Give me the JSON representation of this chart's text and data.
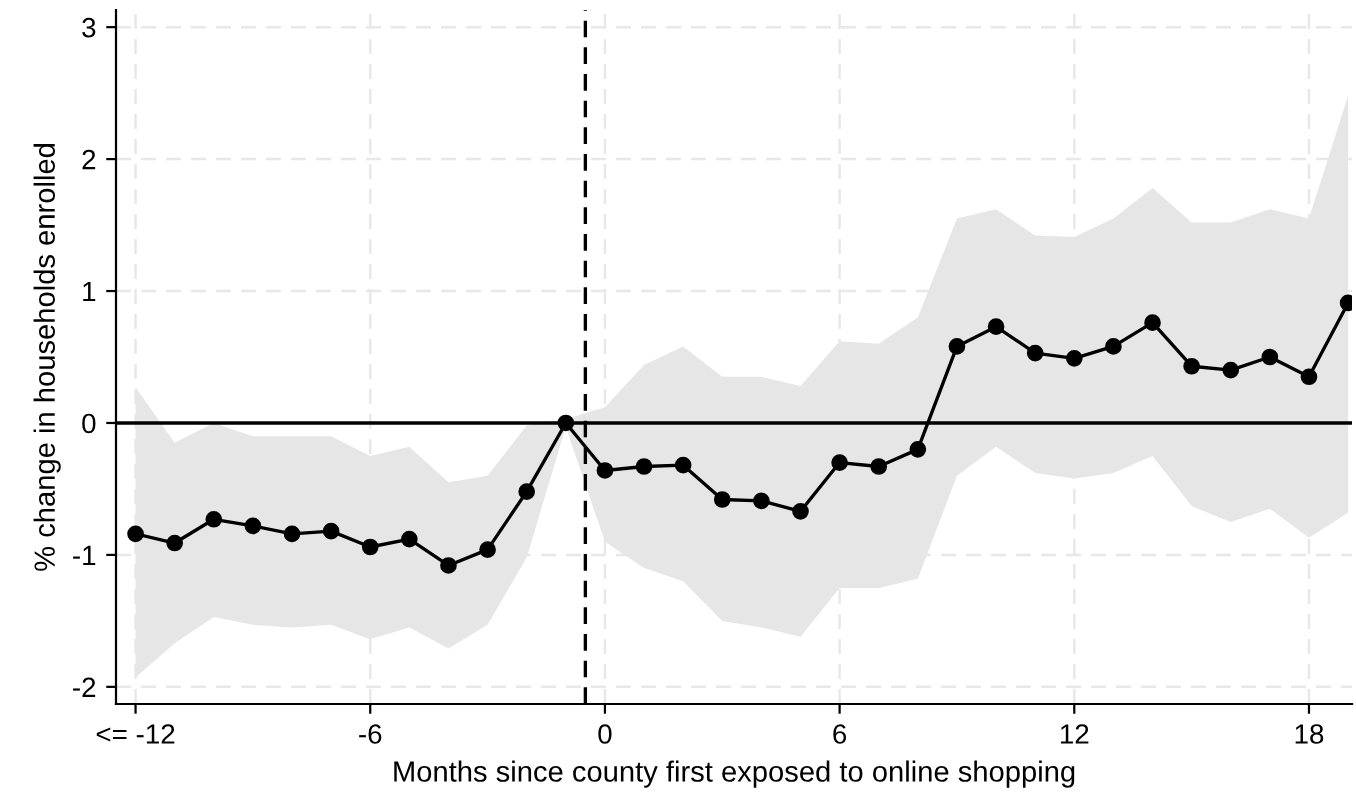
{
  "chart_data": {
    "type": "line",
    "xlabel": "Months since county first exposed to online shopping",
    "ylabel": "% change in households enrolled",
    "x": [
      -12,
      -11,
      -10,
      -9,
      -8,
      -7,
      -6,
      -5,
      -4,
      -3,
      -2,
      -1,
      0,
      1,
      2,
      3,
      4,
      5,
      6,
      7,
      8,
      9,
      10,
      11,
      12,
      13,
      14,
      15,
      16,
      17,
      18,
      19
    ],
    "series": [
      {
        "color": "#000000",
        "values": [
          -0.84,
          -0.91,
          -0.73,
          -0.78,
          -0.84,
          -0.82,
          -0.94,
          -0.88,
          -1.08,
          -0.96,
          -0.52,
          0.0,
          -0.36,
          -0.33,
          -0.32,
          -0.58,
          -0.59,
          -0.67,
          -0.3,
          -0.33,
          -0.2,
          0.58,
          0.73,
          0.53,
          0.49,
          0.58,
          0.76,
          0.43,
          0.4,
          0.5,
          0.35,
          0.91
        ],
        "upper": [
          0.27,
          -0.15,
          0.0,
          -0.1,
          -0.1,
          -0.1,
          -0.25,
          -0.18,
          -0.45,
          -0.4,
          -0.02,
          0.03,
          0.12,
          0.44,
          0.58,
          0.35,
          0.35,
          0.28,
          0.62,
          0.6,
          0.8,
          1.55,
          1.62,
          1.42,
          1.41,
          1.55,
          1.78,
          1.52,
          1.52,
          1.62,
          1.55,
          2.48
        ],
        "lower": [
          -1.93,
          -1.67,
          -1.47,
          -1.53,
          -1.55,
          -1.53,
          -1.64,
          -1.55,
          -1.71,
          -1.53,
          -1.02,
          -0.03,
          -0.9,
          -1.1,
          -1.2,
          -1.5,
          -1.55,
          -1.62,
          -1.25,
          -1.25,
          -1.18,
          -0.4,
          -0.18,
          -0.38,
          -0.42,
          -0.38,
          -0.25,
          -0.63,
          -0.75,
          -0.65,
          -0.87,
          -0.68
        ]
      }
    ],
    "xlim": [
      -12.5,
      19.1
    ],
    "ylim": [
      -2.13,
      3.13
    ],
    "xticks": [
      {
        "value": -12,
        "label": "<= -12"
      },
      -6,
      0,
      6,
      12,
      18
    ],
    "yticks": [
      -2,
      -1,
      0,
      1,
      2,
      3
    ],
    "ref_lines": [
      {
        "axis": "x",
        "value": -0.5,
        "color": "#000000",
        "line_style": "dashed"
      },
      {
        "axis": "y",
        "value": 0,
        "color": "#000000",
        "line_style": "solid"
      }
    ],
    "grid": true,
    "marker": "circle",
    "line_style": "solid",
    "legend": false
  }
}
